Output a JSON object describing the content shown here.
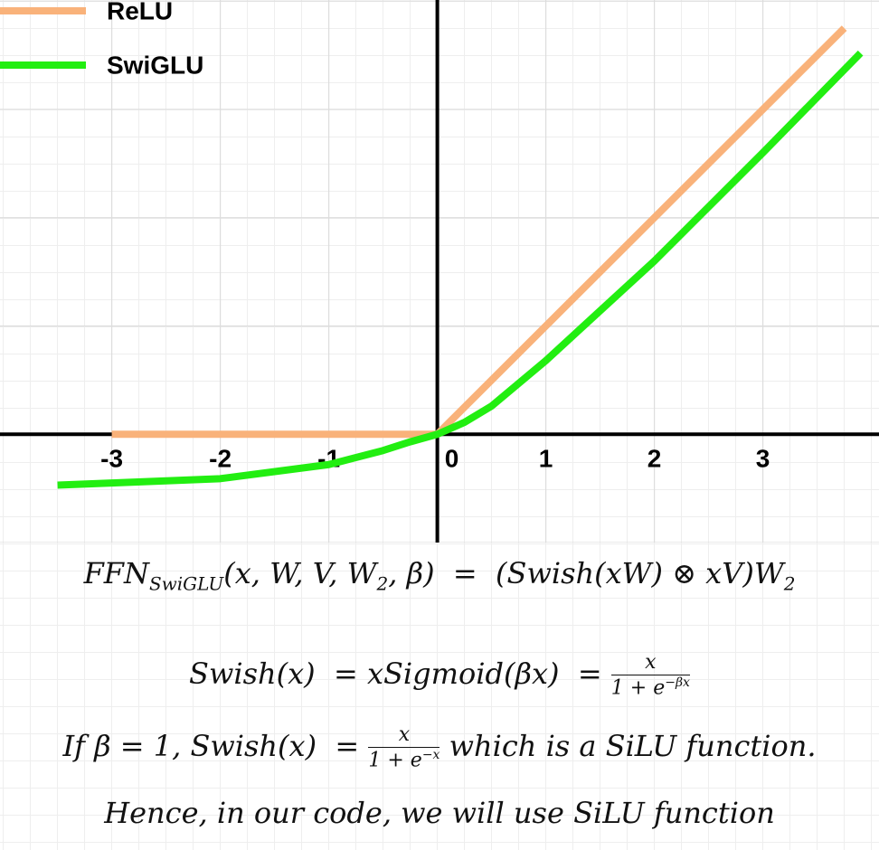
{
  "chart_data": {
    "type": "line",
    "series": [
      {
        "name": "ReLU",
        "color": "#f9b27a",
        "x": [
          -3,
          0,
          3.75
        ],
        "values": [
          0,
          0,
          3.75
        ]
      },
      {
        "name": "SwiGLU",
        "color": "#22ee11",
        "x": [
          -3.5,
          -3,
          -2,
          -1,
          -0.5,
          -0.25,
          0,
          0.25,
          0.5,
          1,
          2,
          3,
          3.9
        ],
        "values": [
          -0.47,
          -0.45,
          -0.41,
          -0.28,
          -0.15,
          -0.07,
          0,
          0.11,
          0.26,
          0.68,
          1.6,
          2.6,
          3.52
        ]
      }
    ],
    "xlim": [
      -4.03,
      4.07
    ],
    "ylim": [
      -1,
      4.01
    ],
    "xticks": [
      -3,
      -2,
      -1,
      0,
      1,
      2,
      3
    ],
    "yticks": [
      -1,
      1,
      2,
      3,
      4
    ],
    "ytick_labels": false,
    "grid": true,
    "legend": "upper left"
  },
  "equations": {
    "ffn": {
      "name": "FFN",
      "name_sub": "SwiGLU",
      "args": "(x, W, V, W",
      "args_sub": "2",
      "rhs": ", β)  =  (Swish(xW) ⊗ xV)W",
      "rhs_sub": "2"
    },
    "swish": {
      "lhs": "Swish(x)  = xSigmoid(βx)  = ",
      "num": "x",
      "den": "1 + e",
      "den_sup": "−βx"
    },
    "silu": {
      "lhs": "If β = 1, Swish(x)  = ",
      "num": "x",
      "den": "1 + e",
      "den_sup": "−x",
      "rhs": " which is a SiLU function."
    },
    "hence": "Hence, in our code, we will use SiLU function"
  }
}
